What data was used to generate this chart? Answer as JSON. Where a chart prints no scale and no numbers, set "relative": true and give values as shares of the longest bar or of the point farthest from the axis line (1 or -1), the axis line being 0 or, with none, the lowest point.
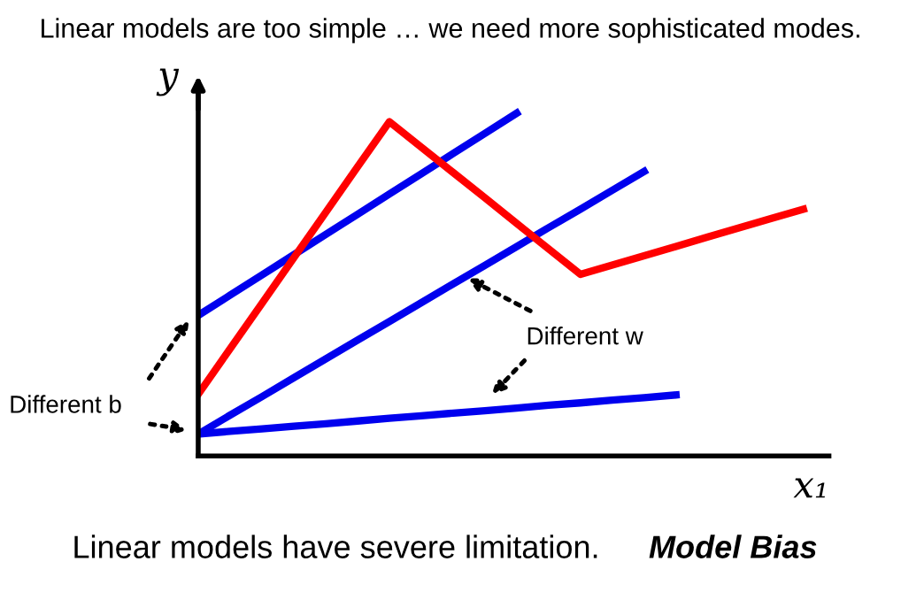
{
  "chart_data": {
    "type": "line",
    "relative": true,
    "legend": false,
    "marker": "none",
    "line_style": "solid",
    "title": "Linear models are too simple … we need more sophisticated modes.",
    "xlabel": "x₁",
    "ylabel": "y",
    "categories": [
      null,
      null,
      null,
      null,
      null,
      null,
      null,
      null,
      null,
      null,
      null,
      null,
      null,
      null,
      null,
      null,
      null,
      null,
      null,
      null
    ],
    "series": [
      {
        "color": "#0000ee",
        "values": [
          0.41,
          0.469,
          0.528,
          0.587,
          0.646,
          0.705,
          0.764,
          0.823,
          0.882,
          0.941,
          1.0,
          null,
          null,
          null,
          null,
          null,
          null,
          null,
          null,
          null
        ]
      },
      {
        "color": "#0000ee",
        "values": [
          0.064,
          0.119,
          0.173,
          0.228,
          0.283,
          0.338,
          0.392,
          0.447,
          0.502,
          0.556,
          0.611,
          0.666,
          0.72,
          0.775,
          0.83,
          null,
          null,
          null,
          null,
          null
        ]
      },
      {
        "color": "#0000ee",
        "values": [
          0.064,
          0.072,
          0.079,
          0.087,
          0.094,
          0.102,
          0.11,
          0.117,
          0.125,
          0.132,
          0.14,
          0.148,
          0.155,
          0.163,
          0.17,
          0.178,
          null,
          null,
          null,
          null
        ]
      },
      {
        "color": "#ff0000",
        "values": [
          0.18,
          0.313,
          0.445,
          0.578,
          0.71,
          0.843,
          0.975,
          0.901,
          0.827,
          0.753,
          0.678,
          0.604,
          0.53,
          0.557,
          0.584,
          0.611,
          0.639,
          0.666,
          0.693,
          0.72
        ]
      }
    ],
    "annotations": [
      "Different b",
      "Different w",
      "Linear models have severe limitation.",
      "Model Bias"
    ]
  }
}
